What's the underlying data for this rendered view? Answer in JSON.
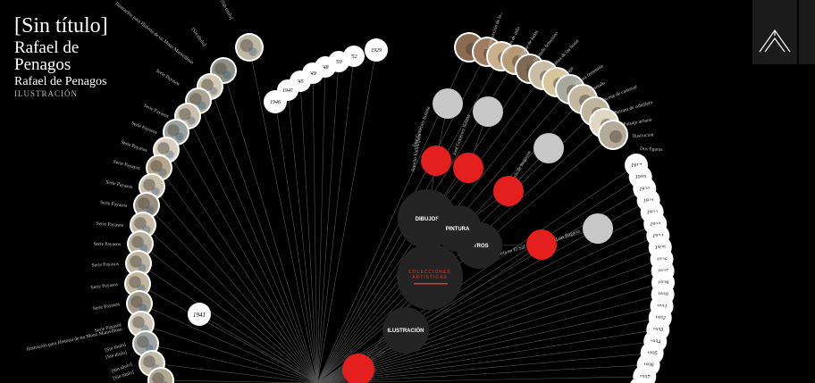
{
  "header": {
    "title": "[Sin título]",
    "author_line1": "Rafael de",
    "author_line2": "Penagos",
    "author_full": "Rafael de Penagos",
    "category": "ILUSTRACIÓN"
  },
  "hub_nodes": {
    "dibujos": "DIBUJOS",
    "pintura": "PINTURA",
    "otros": "OTROS",
    "colecciones_1": "COLECCIONES",
    "colecciones_2": "ARTÍSTICAS",
    "ilustracion": "ILUSTRACIÓN"
  },
  "left_arc_labels": [
    "Serie Payasos",
    "Serie Payasos",
    "Serie Payasos",
    "Serie Payasos",
    "Serie Payasos",
    "Serie Payasos",
    "Serie Payasos",
    "Serie Payasos",
    "Serie Payasos",
    "Serie Payasos",
    "Serie Payasos",
    "Serie Payasos",
    "[Sin título]",
    "[Sin título]"
  ],
  "left_extra_labels": {
    "top1": "[Sin título]",
    "top2": "[Sin título]",
    "top3": "Ilustración para Historia de un Mono Maravilloso",
    "top4": "Serie Payasos",
    "bottom1": "Ilustración para Historia de un Mono Maravilloso",
    "bottom2": "[Sin título]",
    "bottom3": "[Sin título]"
  },
  "year_left": "1941",
  "year_arc_top": [
    "1946",
    "1947",
    "'45",
    "'49",
    "'48",
    "'50",
    "'52",
    "1929"
  ],
  "year_arc_right": [
    "1917",
    "1919",
    "1920",
    "1921",
    "1922",
    "1923",
    "1924",
    "1925",
    "1926",
    "1927",
    "1928",
    "1930",
    "1931",
    "1932",
    "1933",
    "1934",
    "1935",
    "1936",
    "1937",
    "1938"
  ],
  "gray_node_labels": {
    "g1": "José Gutiérrez Solana",
    "g2": "José Gutiérrez Solana",
    "g3": "Darío de Regoyos",
    "g4": "Luis Bagaría"
  },
  "red_node_labels": {
    "r1": "Aurelio Vallmitjana",
    "r2": "Bagaría en El Sol"
  },
  "right_arc_labels": [
    "La seducción de la...",
    "Retrato de niña",
    "El beso de Judas",
    "Desnudo femenino",
    "La danza de las horas",
    "Paisaje",
    "Figura femenina",
    "Desnudo",
    "Escena de carnaval",
    "Retrato de caballero",
    "Paisaje urbano",
    "Ilustración",
    "Dos figuras"
  ],
  "colors": {
    "background": "#000000",
    "hub": "#242424",
    "red": "#e4201e",
    "gray_node": "#c8c8c8",
    "white_node": "#ffffff",
    "line": "#6a6a6a",
    "colecciones_text": "#d93a2f"
  },
  "icons": {
    "logo": "triangle-mountain-logo"
  }
}
